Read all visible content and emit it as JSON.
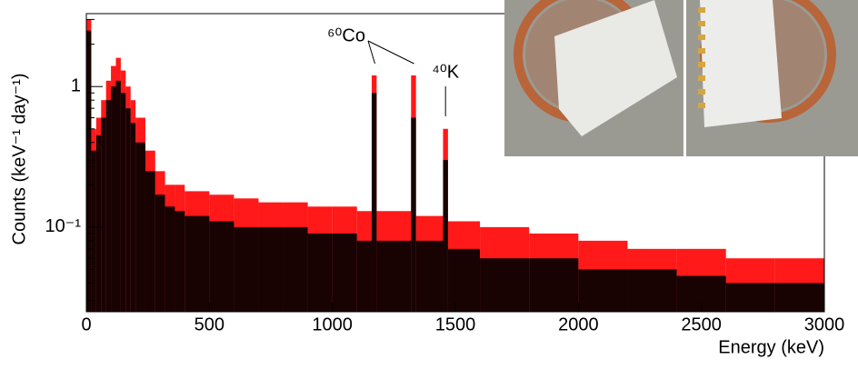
{
  "chart_data": {
    "type": "histogram",
    "log_y": true,
    "xlabel": "Energy (keV)",
    "ylabel": "Counts (keV⁻¹ day⁻¹)",
    "bins": [
      0,
      20,
      40,
      60,
      80,
      100,
      120,
      140,
      160,
      180,
      200,
      240,
      280,
      320,
      360,
      400,
      500,
      600,
      700,
      800,
      900,
      1000,
      1100,
      1160,
      1180,
      1320,
      1340,
      1450,
      1470,
      1600,
      1800,
      2000,
      2200,
      2400,
      2600,
      2800,
      3000
    ],
    "series": [
      {
        "color": "#ff0000",
        "values": [
          3.0,
          0.5,
          0.6,
          0.8,
          1.1,
          1.4,
          1.6,
          1.3,
          1.0,
          0.8,
          0.6,
          0.35,
          0.25,
          0.2,
          0.2,
          0.18,
          0.17,
          0.16,
          0.15,
          0.15,
          0.14,
          0.14,
          0.13,
          1.2,
          0.13,
          1.2,
          0.12,
          0.5,
          0.11,
          0.1,
          0.09,
          0.08,
          0.07,
          0.07,
          0.06,
          0.06
        ]
      },
      {
        "color": "#000000",
        "values": [
          2.5,
          0.35,
          0.45,
          0.6,
          0.8,
          1.0,
          1.1,
          0.9,
          0.7,
          0.55,
          0.4,
          0.25,
          0.17,
          0.14,
          0.13,
          0.12,
          0.11,
          0.1,
          0.1,
          0.1,
          0.09,
          0.09,
          0.08,
          0.9,
          0.08,
          0.6,
          0.08,
          0.3,
          0.07,
          0.06,
          0.06,
          0.05,
          0.05,
          0.045,
          0.04,
          0.04
        ]
      }
    ],
    "annotations": [
      {
        "text": "⁶⁰Co",
        "x": [
          1173,
          1332
        ]
      },
      {
        "text": "⁴⁰K",
        "x": [
          1460
        ]
      }
    ],
    "xlim": [
      0,
      3000
    ],
    "xticks": [
      0,
      500,
      1000,
      1500,
      2000,
      2500,
      3000
    ],
    "ylim": [
      0.025,
      3.3
    ],
    "yticks": [
      1,
      {
        "value": 0.1,
        "label": "10⁻¹"
      }
    ]
  }
}
